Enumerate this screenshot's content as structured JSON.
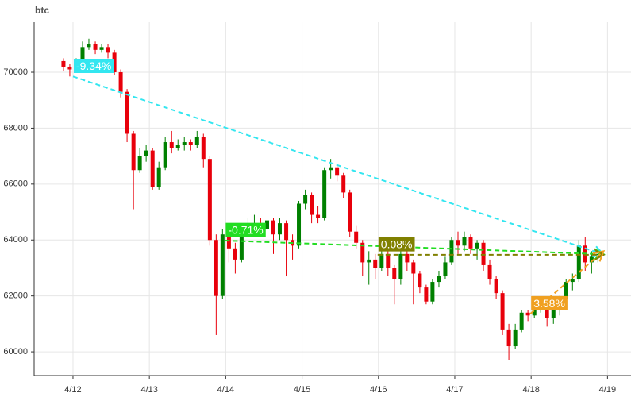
{
  "chart_data": {
    "type": "candlestick",
    "title": "btc",
    "xlim": [
      -0.509,
      7.308
    ],
    "xticks": [
      {
        "value": 0,
        "label": "4/12"
      },
      {
        "value": 1,
        "label": "4/13"
      },
      {
        "value": 2,
        "label": "4/14"
      },
      {
        "value": 3,
        "label": "4/15"
      },
      {
        "value": 4,
        "label": "4/16"
      },
      {
        "value": 5,
        "label": "4/17"
      },
      {
        "value": 6,
        "label": "4/18"
      },
      {
        "value": 7,
        "label": "4/19"
      }
    ],
    "ylim": [
      59150,
      71790
    ],
    "yticks": [
      60000,
      62000,
      64000,
      66000,
      68000,
      70000
    ],
    "grid": true,
    "up_color": "#008000",
    "down_color": "#e8000b",
    "x": [
      -0.125,
      -0.042,
      0.042,
      0.125,
      0.208,
      0.292,
      0.375,
      0.458,
      0.542,
      0.625,
      0.708,
      0.792,
      0.875,
      0.958,
      1.042,
      1.125,
      1.208,
      1.292,
      1.375,
      1.458,
      1.542,
      1.625,
      1.708,
      1.792,
      1.875,
      1.958,
      2.042,
      2.125,
      2.208,
      2.292,
      2.375,
      2.458,
      2.542,
      2.625,
      2.708,
      2.792,
      2.875,
      2.958,
      3.042,
      3.125,
      3.208,
      3.292,
      3.375,
      3.458,
      3.542,
      3.625,
      3.708,
      3.792,
      3.875,
      3.958,
      4.042,
      4.125,
      4.208,
      4.292,
      4.375,
      4.458,
      4.542,
      4.625,
      4.708,
      4.792,
      4.875,
      4.958,
      5.042,
      5.125,
      5.208,
      5.292,
      5.375,
      5.458,
      5.542,
      5.625,
      5.708,
      5.792,
      5.875,
      5.958,
      6.042,
      6.125,
      6.208,
      6.292,
      6.375,
      6.458,
      6.542,
      6.625,
      6.708,
      6.792,
      6.875
    ],
    "candles": [
      [
        70400,
        70500,
        70050,
        70200
      ],
      [
        70200,
        70300,
        69850,
        70100
      ],
      [
        70100,
        70500,
        70000,
        70400
      ],
      [
        70400,
        71100,
        70300,
        70900
      ],
      [
        70900,
        71200,
        70800,
        71000
      ],
      [
        71000,
        71100,
        70650,
        70800
      ],
      [
        70800,
        71000,
        70700,
        70900
      ],
      [
        70900,
        71000,
        70500,
        70700
      ],
      [
        70700,
        70800,
        69900,
        70000
      ],
      [
        70000,
        70100,
        69100,
        69300
      ],
      [
        69300,
        69400,
        67500,
        67800
      ],
      [
        67800,
        67900,
        65100,
        66500
      ],
      [
        66500,
        67300,
        66400,
        67000
      ],
      [
        67000,
        67400,
        66800,
        67200
      ],
      [
        67200,
        67300,
        65800,
        65900
      ],
      [
        65900,
        66800,
        65800,
        66600
      ],
      [
        66600,
        67700,
        66500,
        67500
      ],
      [
        67500,
        67900,
        67100,
        67300
      ],
      [
        67300,
        67600,
        67200,
        67400
      ],
      [
        67400,
        67700,
        67200,
        67500
      ],
      [
        67500,
        67600,
        67200,
        67400
      ],
      [
        67400,
        67900,
        67300,
        67700
      ],
      [
        67700,
        67800,
        66600,
        66900
      ],
      [
        66900,
        67000,
        63800,
        64000
      ],
      [
        64000,
        64200,
        60600,
        62000
      ],
      [
        62000,
        64400,
        61900,
        64200
      ],
      [
        64200,
        64500,
        63200,
        63700
      ],
      [
        63700,
        63900,
        62800,
        63300
      ],
      [
        63300,
        64400,
        63200,
        64300
      ],
      [
        64300,
        64800,
        64100,
        64500
      ],
      [
        64500,
        64900,
        64300,
        64600
      ],
      [
        64600,
        64800,
        64100,
        64400
      ],
      [
        64400,
        64900,
        64300,
        64700
      ],
      [
        64700,
        64800,
        63500,
        64200
      ],
      [
        64200,
        64800,
        64000,
        64600
      ],
      [
        64600,
        64700,
        62700,
        64000
      ],
      [
        64000,
        64200,
        63300,
        63800
      ],
      [
        63800,
        65400,
        63700,
        65300
      ],
      [
        65300,
        65800,
        65100,
        65600
      ],
      [
        65600,
        65700,
        64600,
        64900
      ],
      [
        64900,
        65200,
        64600,
        64800
      ],
      [
        64800,
        66600,
        64700,
        66500
      ],
      [
        66500,
        66900,
        66200,
        66600
      ],
      [
        66600,
        66700,
        66100,
        66300
      ],
      [
        66300,
        66400,
        65500,
        65700
      ],
      [
        65700,
        65800,
        64100,
        64300
      ],
      [
        64300,
        64500,
        63700,
        63900
      ],
      [
        63900,
        64000,
        62700,
        63200
      ],
      [
        63200,
        63600,
        62400,
        63300
      ],
      [
        63300,
        63500,
        62600,
        63000
      ],
      [
        63000,
        63800,
        62900,
        63500
      ],
      [
        63500,
        63600,
        62700,
        63000
      ],
      [
        63000,
        63100,
        61700,
        62600
      ],
      [
        62600,
        63700,
        62400,
        63500
      ],
      [
        63500,
        63600,
        62900,
        63200
      ],
      [
        63200,
        63300,
        61700,
        62800
      ],
      [
        62800,
        62900,
        62100,
        62300
      ],
      [
        62300,
        62400,
        61700,
        61800
      ],
      [
        61800,
        62600,
        61700,
        62500
      ],
      [
        62500,
        62900,
        62300,
        62700
      ],
      [
        62700,
        63400,
        62600,
        63200
      ],
      [
        63200,
        64100,
        63100,
        64000
      ],
      [
        64000,
        64300,
        63500,
        63800
      ],
      [
        63800,
        64300,
        63600,
        64100
      ],
      [
        64100,
        64200,
        63500,
        63700
      ],
      [
        63700,
        64000,
        63300,
        63900
      ],
      [
        63900,
        64000,
        62900,
        63100
      ],
      [
        63100,
        63300,
        62400,
        62600
      ],
      [
        62600,
        62700,
        61900,
        62100
      ],
      [
        62100,
        62200,
        60600,
        60800
      ],
      [
        60800,
        61000,
        59700,
        60200
      ],
      [
        60200,
        61000,
        60100,
        60800
      ],
      [
        60800,
        61500,
        60700,
        61400
      ],
      [
        61400,
        61500,
        61100,
        61300
      ],
      [
        61300,
        61800,
        61200,
        61600
      ],
      [
        61600,
        61900,
        61400,
        61700
      ],
      [
        61700,
        61800,
        60900,
        61200
      ],
      [
        61200,
        61600,
        61000,
        61500
      ],
      [
        61500,
        62000,
        61300,
        61900
      ],
      [
        61900,
        62600,
        61800,
        62500
      ],
      [
        62500,
        62800,
        62200,
        62600
      ],
      [
        62600,
        64000,
        62500,
        63800
      ],
      [
        63800,
        64100,
        62900,
        63200
      ],
      [
        63200,
        63600,
        62800,
        63400
      ],
      [
        63400,
        63600,
        63200,
        63500
      ]
    ],
    "annotations": [
      {
        "label": "-9.34%",
        "color": "#33e6f0",
        "x": [
          0,
          6.95
        ],
        "y": [
          69850,
          63480
        ]
      },
      {
        "label": "-0.71%",
        "color": "#22dd22",
        "x": [
          1.99,
          6.95
        ],
        "y": [
          63980,
          63490
        ]
      },
      {
        "label": "0.08%",
        "color": "#808000",
        "x": [
          3.99,
          6.95
        ],
        "y": [
          63470,
          63470
        ]
      },
      {
        "label": "3.58%",
        "color": "#f0a020",
        "x": [
          5.99,
          6.95
        ],
        "y": [
          61360,
          63600
        ]
      }
    ]
  }
}
